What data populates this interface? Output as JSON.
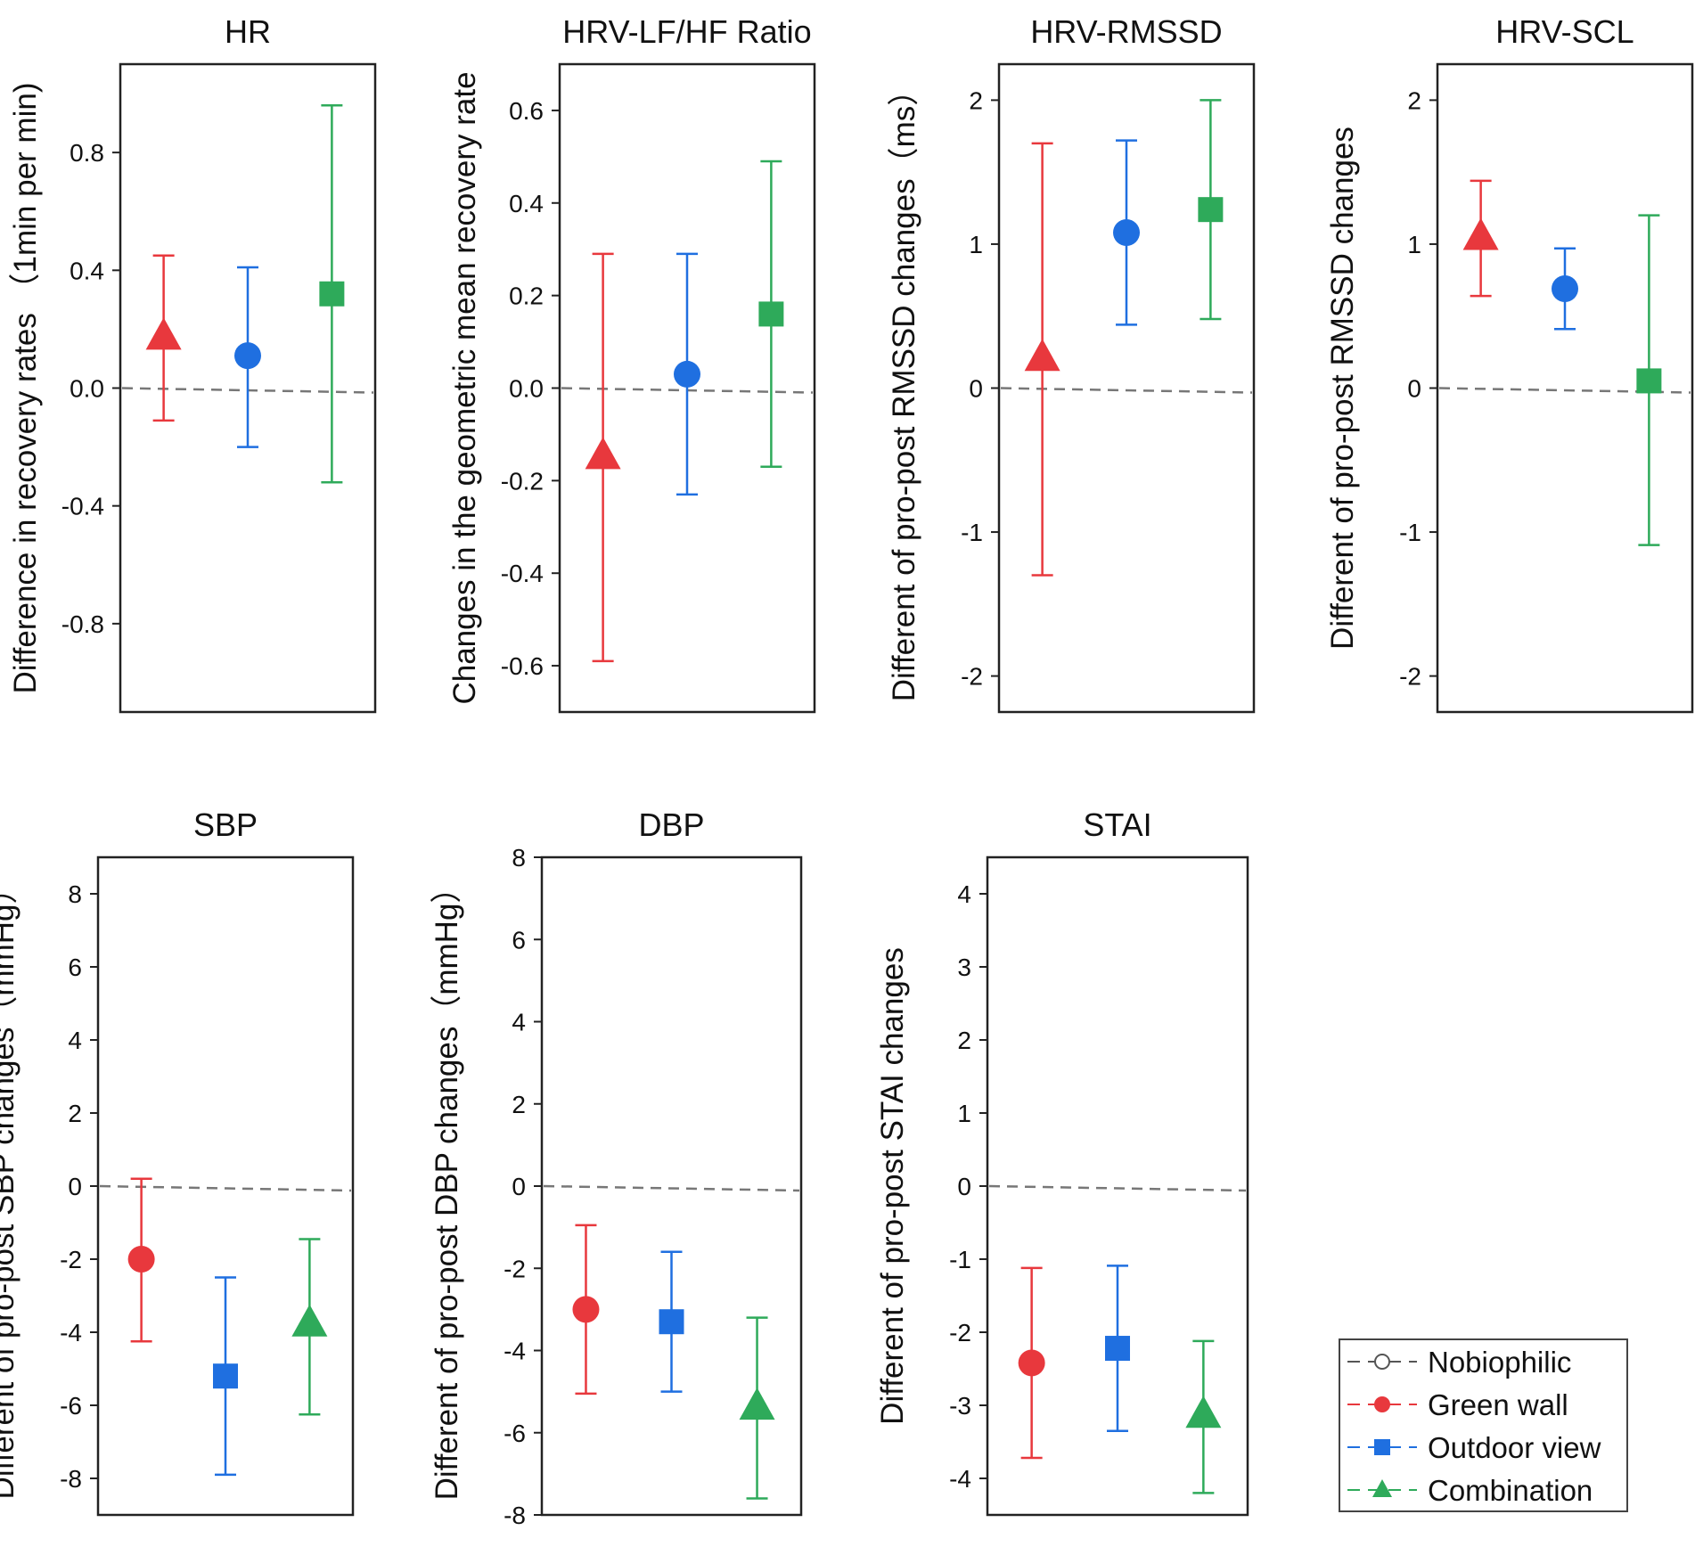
{
  "series_styles": {
    "nobiophilic": {
      "color": "#555555",
      "marker": "circle-open"
    },
    "green_wall": {
      "color": "#e8383d",
      "marker": "circle"
    },
    "outdoor_view": {
      "color": "#1f6fe0",
      "marker": "square"
    },
    "combination": {
      "color": "#2eaa5a",
      "marker": "triangle"
    }
  },
  "legend": {
    "items": [
      {
        "label": "Nobiophilic",
        "series": "nobiophilic"
      },
      {
        "label": "Green wall",
        "series": "green_wall"
      },
      {
        "label": "Outdoor view",
        "series": "outdoor_view"
      },
      {
        "label": "Combination",
        "series": "combination"
      }
    ]
  },
  "chart_data": [
    {
      "type": "scatter",
      "title": "HR",
      "ylabel": "Difference in recovery rates （1min per min)",
      "ylim": [
        -1.1,
        1.1
      ],
      "ticks": [
        -0.8,
        -0.4,
        0.0,
        0.4,
        0.8
      ],
      "tick_labels": [
        "-0.8",
        "-0.4",
        "0.0",
        "0.4",
        "0.8"
      ],
      "reference_line": 0,
      "grid": false,
      "points": [
        {
          "series": "green_wall",
          "marker": "triangle",
          "value": 0.17,
          "lower": -0.11,
          "upper": 0.45
        },
        {
          "series": "outdoor_view",
          "marker": "circle",
          "value": 0.11,
          "lower": -0.2,
          "upper": 0.41
        },
        {
          "series": "combination",
          "marker": "square",
          "value": 0.32,
          "lower": -0.32,
          "upper": 0.96
        }
      ]
    },
    {
      "type": "scatter",
      "title": "HRV-LF/HF Ratio",
      "ylabel": "Changes in the geometric mean recovery rate",
      "ylim": [
        -0.7,
        0.7
      ],
      "ticks": [
        -0.6,
        -0.4,
        -0.2,
        0.0,
        0.2,
        0.4,
        0.6
      ],
      "tick_labels": [
        "-0.6",
        "-0.4",
        "-0.2",
        "0.0",
        "0.2",
        "0.4",
        "0.6"
      ],
      "reference_line": 0,
      "grid": false,
      "points": [
        {
          "series": "green_wall",
          "marker": "triangle",
          "value": -0.15,
          "lower": -0.59,
          "upper": 0.29
        },
        {
          "series": "outdoor_view",
          "marker": "circle",
          "value": 0.03,
          "lower": -0.23,
          "upper": 0.29
        },
        {
          "series": "combination",
          "marker": "square",
          "value": 0.16,
          "lower": -0.17,
          "upper": 0.49
        }
      ]
    },
    {
      "type": "scatter",
      "title": "HRV-RMSSD",
      "ylabel": "Different of pro-post RMSSD changes（ms）",
      "ylim": [
        -2.25,
        2.25
      ],
      "ticks": [
        -2,
        -1,
        0,
        1,
        2
      ],
      "tick_labels": [
        "-2",
        "-1",
        "0",
        "1",
        "2"
      ],
      "reference_line": 0,
      "grid": false,
      "points": [
        {
          "series": "green_wall",
          "marker": "triangle",
          "value": 0.2,
          "lower": -1.3,
          "upper": 1.7
        },
        {
          "series": "outdoor_view",
          "marker": "circle",
          "value": 1.08,
          "lower": 0.44,
          "upper": 1.72
        },
        {
          "series": "combination",
          "marker": "square",
          "value": 1.24,
          "lower": 0.48,
          "upper": 2.0
        }
      ]
    },
    {
      "type": "scatter",
      "title": "HRV-SCL",
      "ylabel": "Different of pro-post RMSSD changes",
      "ylim": [
        -2.25,
        2.25
      ],
      "ticks": [
        -2,
        -1,
        0,
        1,
        2
      ],
      "tick_labels": [
        "-2",
        "-1",
        "0",
        "1",
        "2"
      ],
      "reference_line": 0,
      "grid": false,
      "points": [
        {
          "series": "green_wall",
          "marker": "triangle",
          "value": 1.04,
          "lower": 0.64,
          "upper": 1.44
        },
        {
          "series": "outdoor_view",
          "marker": "circle",
          "value": 0.69,
          "lower": 0.41,
          "upper": 0.97
        },
        {
          "series": "combination",
          "marker": "square",
          "value": 0.05,
          "lower": -1.09,
          "upper": 1.2
        }
      ]
    },
    {
      "type": "scatter",
      "title": "SBP",
      "ylabel": "Different of pro-post SBP changes（mmHg）",
      "ylim": [
        -9.0,
        9.0
      ],
      "ticks": [
        -8,
        -6,
        -4,
        -2,
        0,
        2,
        4,
        6,
        8
      ],
      "tick_labels": [
        "-8",
        "-6",
        "-4",
        "-2",
        "0",
        "2",
        "4",
        "6",
        "8"
      ],
      "reference_line": 0,
      "grid": false,
      "points": [
        {
          "series": "green_wall",
          "marker": "circle",
          "value": -2.0,
          "lower": -4.25,
          "upper": 0.2
        },
        {
          "series": "outdoor_view",
          "marker": "square",
          "value": -5.2,
          "lower": -7.9,
          "upper": -2.5
        },
        {
          "series": "combination",
          "marker": "triangle",
          "value": -3.8,
          "lower": -6.25,
          "upper": -1.45
        }
      ]
    },
    {
      "type": "scatter",
      "title": "DBP",
      "ylabel": "Different of pro-post DBP changes（mmHg）",
      "ylim": [
        -8.0,
        8.0
      ],
      "ticks": [
        -8,
        -6,
        -4,
        -2,
        0,
        2,
        4,
        6,
        8
      ],
      "tick_labels": [
        "-8",
        "-6",
        "-4",
        "-2",
        "0",
        "2",
        "4",
        "6",
        "8"
      ],
      "reference_line": 0,
      "grid": false,
      "points": [
        {
          "series": "green_wall",
          "marker": "circle",
          "value": -3.0,
          "lower": -5.05,
          "upper": -0.95
        },
        {
          "series": "outdoor_view",
          "marker": "square",
          "value": -3.3,
          "lower": -5.0,
          "upper": -1.6
        },
        {
          "series": "combination",
          "marker": "triangle",
          "value": -5.4,
          "lower": -7.6,
          "upper": -3.2
        }
      ]
    },
    {
      "type": "scatter",
      "title": "STAI",
      "ylabel": "Different of pro-post STAI changes",
      "ylim": [
        -4.5,
        4.5
      ],
      "ticks": [
        -4,
        -3,
        -2,
        -1,
        0,
        1,
        2,
        3,
        4
      ],
      "tick_labels": [
        "-4",
        "-3",
        "-2",
        "-1",
        "0",
        "1",
        "2",
        "3",
        "4"
      ],
      "reference_line": 0,
      "grid": false,
      "points": [
        {
          "series": "green_wall",
          "marker": "circle",
          "value": -2.42,
          "lower": -3.72,
          "upper": -1.12
        },
        {
          "series": "outdoor_view",
          "marker": "square",
          "value": -2.22,
          "lower": -3.35,
          "upper": -1.09
        },
        {
          "series": "combination",
          "marker": "triangle",
          "value": -3.15,
          "lower": -4.2,
          "upper": -2.12
        }
      ]
    }
  ]
}
